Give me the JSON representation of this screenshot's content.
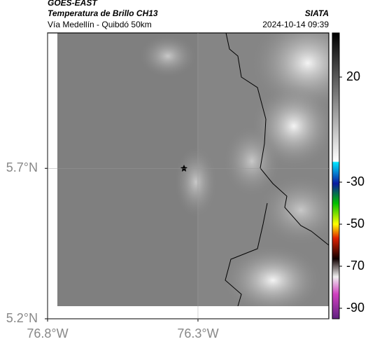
{
  "header": {
    "source": "GOES-EAST",
    "title": "Temperatura de Brillo CH13",
    "subtitle": "Vía Medellín - Quibdó 50km",
    "agency": "SIATA",
    "datetime": "2024-10-14 09:39"
  },
  "map": {
    "xlim": [
      -76.8,
      -75.865
    ],
    "ylim": [
      5.2,
      6.15
    ],
    "xticks": [
      {
        "value": -76.8,
        "label": "76.8°W"
      },
      {
        "value": -76.3,
        "label": "76.3°W"
      }
    ],
    "yticks": [
      {
        "value": 5.2,
        "label": "5.2°N"
      },
      {
        "value": 5.7,
        "label": "5.7°N"
      }
    ],
    "grid": true
  },
  "colorbar": {
    "lim": [
      41,
      -95
    ],
    "ticks": [
      20,
      -30,
      -50,
      -70,
      -90
    ]
  }
}
